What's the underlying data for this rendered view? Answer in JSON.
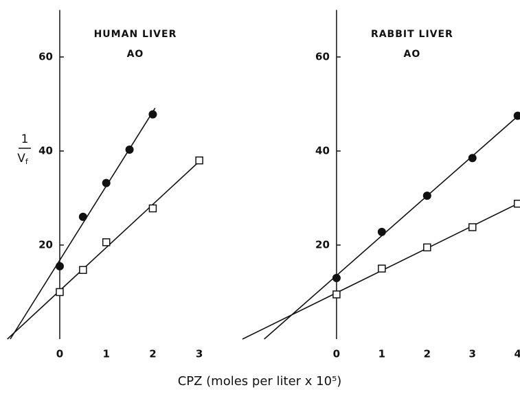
{
  "chart_data": [
    {
      "type": "scatter",
      "title": [
        "HUMAN LIVER",
        "AO"
      ],
      "ylabel": {
        "numerator": "1",
        "denominator": "V",
        "denominator_sub": "f"
      },
      "xlim": [
        -1.15,
        3.5
      ],
      "ylim": [
        0,
        70
      ],
      "xticks": [
        0,
        1,
        2,
        3
      ],
      "yticks": [
        20,
        40,
        60
      ],
      "fit_lines": true,
      "series": [
        {
          "marker": "circle",
          "color": "#111111",
          "x": [
            0,
            0.5,
            1,
            1.5,
            2
          ],
          "values": [
            15.5,
            26,
            33.2,
            40.3,
            47.8
          ]
        },
        {
          "marker": "square",
          "color": "#111111",
          "x": [
            0,
            0.5,
            1,
            2,
            3
          ],
          "values": [
            10,
            14.7,
            20.6,
            27.8,
            38
          ]
        }
      ]
    },
    {
      "type": "scatter",
      "title": [
        "RABBIT LIVER",
        "AO"
      ],
      "xlim": [
        -2.1,
        4.05
      ],
      "ylim": [
        0,
        70
      ],
      "xticks": [
        0,
        1,
        2,
        3,
        4
      ],
      "yticks": [
        20,
        40,
        60
      ],
      "fit_lines": true,
      "series": [
        {
          "marker": "circle",
          "color": "#111111",
          "x": [
            0,
            1,
            2,
            3,
            4
          ],
          "values": [
            13,
            22.8,
            30.5,
            38.5,
            47.5
          ]
        },
        {
          "marker": "square",
          "color": "#111111",
          "x": [
            0,
            1,
            2,
            3,
            4
          ],
          "values": [
            9.5,
            15,
            19.5,
            23.8,
            28.8
          ]
        }
      ]
    }
  ],
  "xlabel": "CPZ (moles per liter x 10⁵)"
}
